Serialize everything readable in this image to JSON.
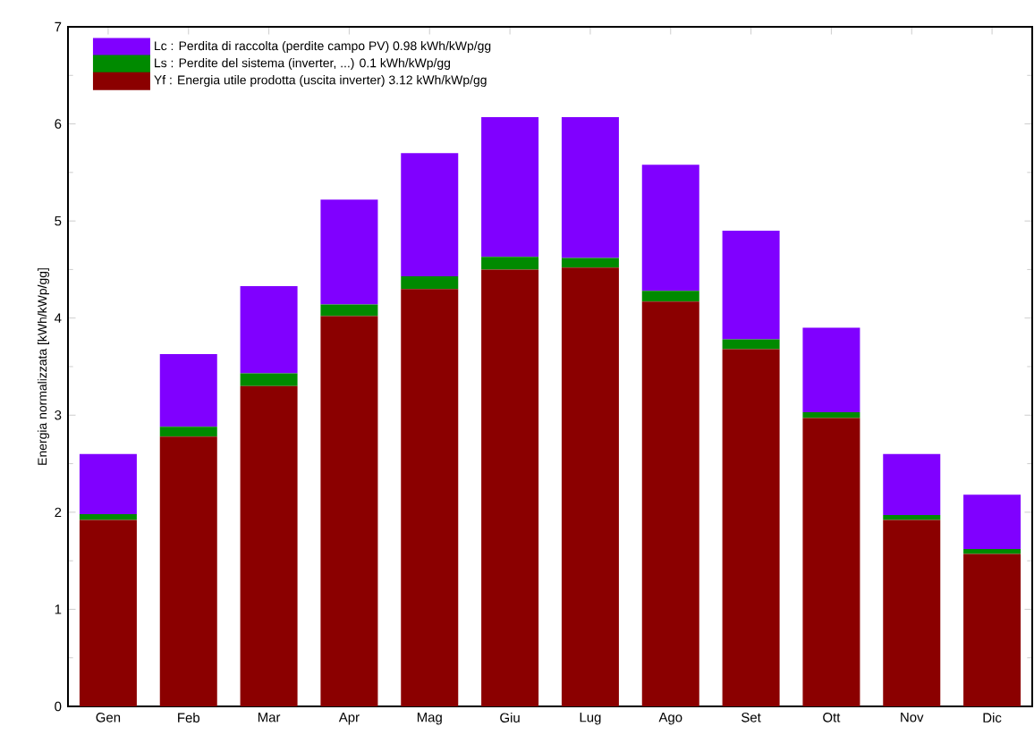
{
  "chart_data": {
    "type": "bar",
    "stacked": true,
    "ylabel": "Energia normalizzata [kWh/kWp/gg]",
    "categories": [
      "Gen",
      "Feb",
      "Mar",
      "Apr",
      "Mag",
      "Giu",
      "Lug",
      "Ago",
      "Set",
      "Ott",
      "Nov",
      "Dic"
    ],
    "series": [
      {
        "name": "Yf : Energia utile prodotta  (uscita inverter)   3.12 kWh/kWp/gg",
        "color": "#8b0000",
        "values": [
          1.92,
          2.78,
          3.3,
          4.02,
          4.3,
          4.5,
          4.52,
          4.17,
          3.68,
          2.97,
          1.92,
          1.57
        ]
      },
      {
        "name": "Ls : Perdite del sistema  (inverter, ...)   0.1 kWh/kWp/gg",
        "color": "#008a00",
        "values": [
          0.06,
          0.1,
          0.13,
          0.12,
          0.13,
          0.13,
          0.1,
          0.11,
          0.1,
          0.06,
          0.05,
          0.05
        ]
      },
      {
        "name": "Lc : Perdita di raccolta (perdite campo PV)   0.98 kWh/kWp/gg",
        "color": "#8000ff",
        "values": [
          0.62,
          0.75,
          0.9,
          1.08,
          1.27,
          1.44,
          1.45,
          1.3,
          1.12,
          0.87,
          0.63,
          0.56
        ]
      }
    ],
    "ylim": [
      0,
      7
    ],
    "yticks": [
      0,
      1,
      2,
      3,
      4,
      5,
      6,
      7
    ],
    "grid": false,
    "legend": "top left"
  }
}
